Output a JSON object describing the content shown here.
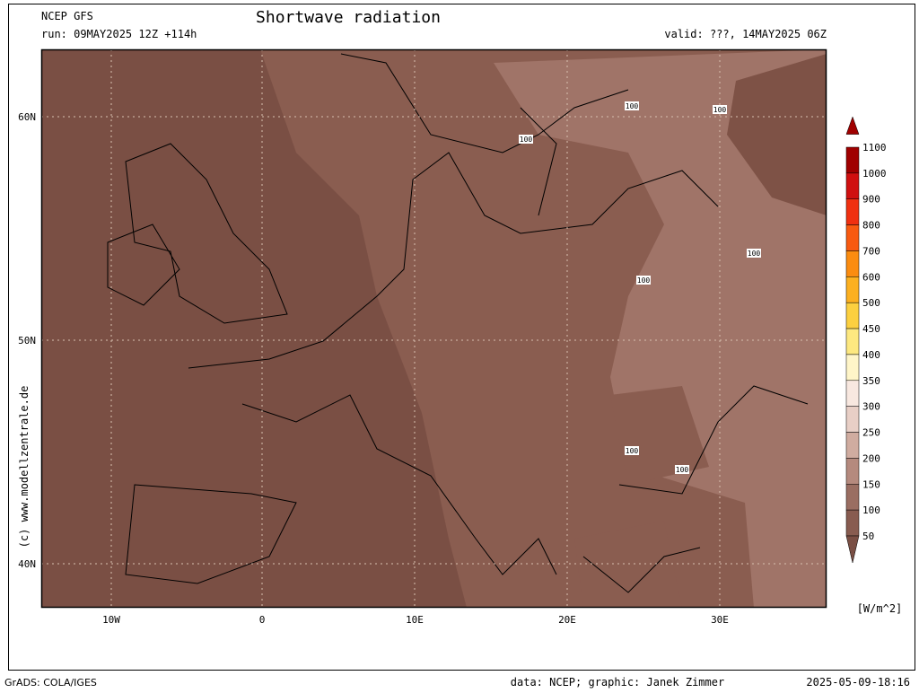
{
  "header": {
    "model": "NCEP GFS",
    "run": "run: 09MAY2025 12Z +114h",
    "title": "Shortwave radiation",
    "valid": "valid: ???, 14MAY2025 06Z"
  },
  "map": {
    "lat_labels": [
      "60N",
      "50N",
      "40N"
    ],
    "lon_labels": [
      "10W",
      "0",
      "10E",
      "20E",
      "30E"
    ],
    "contour_labels": [
      "100",
      "100",
      "100",
      "100",
      "100",
      "100",
      "100"
    ]
  },
  "colorbar": {
    "unit": "[W/m^2]",
    "levels": [
      {
        "label": "1100",
        "color": "#a00000"
      },
      {
        "label": "1000",
        "color": "#d01010"
      },
      {
        "label": "900",
        "color": "#f03010"
      },
      {
        "label": "800",
        "color": "#f85a10"
      },
      {
        "label": "700",
        "color": "#fb8c10"
      },
      {
        "label": "600",
        "color": "#fcb020"
      },
      {
        "label": "500",
        "color": "#fcd040"
      },
      {
        "label": "450",
        "color": "#fde880"
      },
      {
        "label": "400",
        "color": "#fff5c8"
      },
      {
        "label": "350",
        "color": "#f8e8e0"
      },
      {
        "label": "300",
        "color": "#e8cfc6"
      },
      {
        "label": "250",
        "color": "#d0aca0"
      },
      {
        "label": "200",
        "color": "#b58a7e"
      },
      {
        "label": "150",
        "color": "#9a6e62"
      },
      {
        "label": "100",
        "color": "#885c50"
      },
      {
        "label": "50",
        "color": "#7a4f44"
      }
    ]
  },
  "watermark": "(c)  www.modellzentrale.de",
  "footer": {
    "left": "GrADS: COLA/IGES",
    "center": "data: NCEP; graphic: Janek Zimmer",
    "right": "2025-05-09-18:16"
  }
}
